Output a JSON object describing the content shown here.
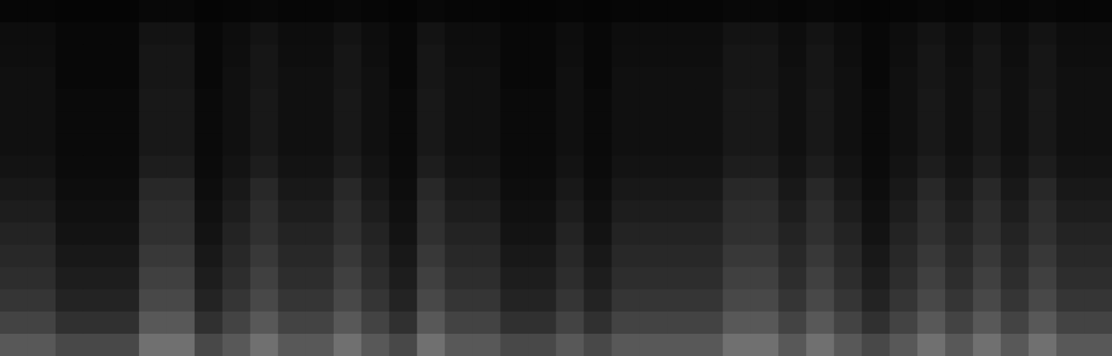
{
  "chart_data": {
    "type": "heatmap",
    "tick_labels": false,
    "cells": [
      [
        4,
        4,
        3,
        3,
        3,
        5,
        5,
        3,
        4,
        5,
        4,
        4,
        5,
        4,
        3,
        5,
        4,
        4,
        3,
        3,
        4,
        3,
        4,
        4,
        4,
        4,
        5,
        5,
        4,
        5,
        4,
        3,
        4,
        5,
        4,
        5,
        4,
        5,
        4,
        4
      ],
      [
        8,
        8,
        5,
        5,
        5,
        12,
        12,
        5,
        8,
        12,
        8,
        8,
        12,
        8,
        5,
        12,
        8,
        8,
        5,
        5,
        8,
        5,
        8,
        8,
        8,
        8,
        12,
        12,
        8,
        12,
        8,
        5,
        8,
        12,
        8,
        12,
        8,
        12,
        8,
        8
      ],
      [
        9,
        9,
        5,
        5,
        5,
        14,
        14,
        5,
        9,
        14,
        9,
        9,
        14,
        9,
        5,
        14,
        9,
        9,
        5,
        5,
        9,
        5,
        9,
        9,
        9,
        9,
        14,
        14,
        9,
        14,
        9,
        5,
        9,
        14,
        9,
        14,
        9,
        14,
        9,
        9
      ],
      [
        10,
        10,
        5,
        5,
        5,
        14,
        14,
        5,
        10,
        14,
        10,
        10,
        14,
        10,
        5,
        14,
        10,
        10,
        5,
        5,
        10,
        5,
        10,
        10,
        10,
        10,
        14,
        14,
        10,
        14,
        10,
        5,
        10,
        14,
        10,
        14,
        10,
        14,
        10,
        10
      ],
      [
        10,
        10,
        6,
        6,
        6,
        15,
        15,
        6,
        10,
        15,
        10,
        10,
        15,
        10,
        6,
        15,
        10,
        10,
        6,
        6,
        10,
        6,
        10,
        10,
        10,
        10,
        15,
        15,
        10,
        15,
        10,
        6,
        10,
        15,
        10,
        15,
        10,
        15,
        10,
        10
      ],
      [
        10,
        10,
        6,
        6,
        6,
        15,
        15,
        6,
        10,
        15,
        10,
        10,
        15,
        10,
        6,
        15,
        10,
        10,
        6,
        6,
        10,
        6,
        10,
        10,
        10,
        10,
        15,
        15,
        10,
        15,
        10,
        6,
        10,
        15,
        10,
        15,
        10,
        15,
        10,
        10
      ],
      [
        10,
        10,
        6,
        6,
        6,
        15,
        15,
        6,
        10,
        15,
        10,
        10,
        15,
        10,
        6,
        15,
        10,
        10,
        6,
        6,
        10,
        6,
        10,
        10,
        10,
        10,
        15,
        15,
        10,
        15,
        10,
        6,
        10,
        15,
        10,
        15,
        10,
        15,
        10,
        10
      ],
      [
        12,
        12,
        7,
        7,
        7,
        18,
        18,
        7,
        12,
        18,
        12,
        12,
        18,
        12,
        7,
        18,
        12,
        12,
        7,
        7,
        12,
        7,
        12,
        12,
        12,
        12,
        18,
        18,
        12,
        18,
        12,
        7,
        12,
        18,
        12,
        18,
        12,
        18,
        12,
        12
      ],
      [
        15,
        15,
        8,
        8,
        8,
        25,
        25,
        8,
        15,
        25,
        15,
        15,
        25,
        15,
        8,
        25,
        15,
        15,
        8,
        8,
        15,
        8,
        15,
        15,
        15,
        15,
        25,
        25,
        15,
        25,
        15,
        8,
        15,
        25,
        15,
        25,
        15,
        25,
        15,
        15
      ],
      [
        18,
        18,
        10,
        10,
        10,
        28,
        28,
        10,
        18,
        28,
        18,
        18,
        28,
        18,
        10,
        28,
        18,
        18,
        10,
        10,
        18,
        10,
        18,
        18,
        18,
        18,
        28,
        28,
        18,
        28,
        18,
        10,
        18,
        28,
        18,
        28,
        18,
        28,
        18,
        18
      ],
      [
        22,
        22,
        12,
        12,
        12,
        30,
        30,
        12,
        22,
        30,
        22,
        22,
        30,
        22,
        12,
        30,
        22,
        22,
        12,
        12,
        22,
        12,
        22,
        22,
        22,
        22,
        30,
        30,
        22,
        30,
        22,
        12,
        22,
        30,
        22,
        30,
        22,
        30,
        22,
        22
      ],
      [
        25,
        25,
        15,
        15,
        15,
        35,
        35,
        15,
        25,
        35,
        25,
        25,
        35,
        25,
        15,
        35,
        25,
        25,
        15,
        15,
        25,
        15,
        25,
        25,
        25,
        25,
        35,
        35,
        25,
        35,
        25,
        15,
        25,
        35,
        25,
        35,
        25,
        35,
        25,
        25
      ],
      [
        28,
        28,
        18,
        18,
        18,
        40,
        40,
        18,
        28,
        40,
        28,
        28,
        40,
        28,
        18,
        40,
        28,
        28,
        18,
        18,
        28,
        18,
        28,
        28,
        28,
        28,
        40,
        40,
        28,
        40,
        28,
        18,
        28,
        40,
        28,
        40,
        28,
        40,
        28,
        28
      ],
      [
        33,
        33,
        22,
        22,
        22,
        45,
        45,
        22,
        33,
        45,
        33,
        33,
        45,
        33,
        22,
        45,
        33,
        33,
        22,
        22,
        33,
        22,
        33,
        33,
        33,
        33,
        45,
        45,
        33,
        45,
        33,
        22,
        33,
        45,
        33,
        45,
        33,
        45,
        33,
        33
      ],
      [
        42,
        42,
        30,
        30,
        30,
        55,
        55,
        30,
        42,
        55,
        42,
        42,
        55,
        42,
        30,
        55,
        42,
        42,
        30,
        30,
        42,
        30,
        42,
        42,
        42,
        42,
        55,
        55,
        42,
        55,
        42,
        30,
        42,
        55,
        42,
        55,
        42,
        55,
        42,
        42
      ],
      [
        55,
        55,
        45,
        45,
        45,
        70,
        70,
        45,
        55,
        70,
        55,
        55,
        70,
        55,
        45,
        70,
        55,
        55,
        45,
        45,
        55,
        45,
        55,
        55,
        55,
        55,
        70,
        70,
        55,
        70,
        55,
        45,
        55,
        70,
        55,
        70,
        55,
        70,
        55,
        55
      ]
    ]
  }
}
